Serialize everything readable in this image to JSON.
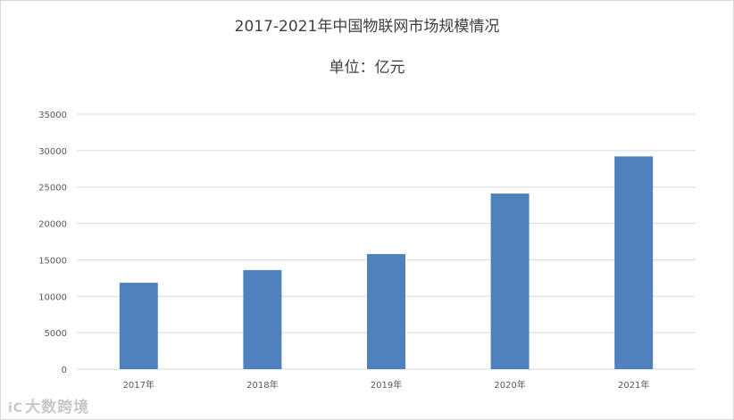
{
  "chart_data": {
    "type": "bar",
    "title": "2017-2021年中国物联网市场规模情况",
    "subtitle": "单位：亿元",
    "categories": [
      "2017年",
      "2018年",
      "2019年",
      "2020年",
      "2021年"
    ],
    "values": [
      11860,
      13600,
      15800,
      24100,
      29200
    ],
    "ylim": [
      0,
      35000
    ],
    "yticks": [
      0,
      5000,
      10000,
      15000,
      20000,
      25000,
      30000,
      35000
    ],
    "grid": true,
    "legend": "none",
    "bar_color": "#4f81bd",
    "grid_color": "#d9d9d9"
  },
  "watermark": {
    "mark": "iC",
    "text": "大数跨境"
  }
}
